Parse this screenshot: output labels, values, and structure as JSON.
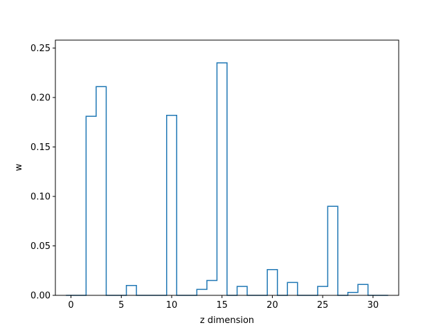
{
  "chart_data": {
    "type": "line",
    "style": "step-histogram",
    "title": "",
    "xlabel": "z dimension",
    "ylabel": "w",
    "xlim": [
      -1.55,
      32.55
    ],
    "ylim": [
      0,
      0.258
    ],
    "xticks": [
      0,
      5,
      10,
      15,
      20,
      25,
      30
    ],
    "xtick_labels": [
      "0",
      "5",
      "10",
      "15",
      "20",
      "25",
      "30"
    ],
    "yticks": [
      0,
      0.05,
      0.1,
      0.15,
      0.2,
      0.25
    ],
    "ytick_labels": [
      "0.00",
      "0.05",
      "0.10",
      "0.15",
      "0.20",
      "0.25"
    ],
    "grid": false,
    "legend": "none",
    "line_color": "#1f77b4",
    "series": [
      {
        "x": [
          0,
          1,
          2,
          3,
          4,
          5,
          6,
          7,
          8,
          9,
          10,
          11,
          12,
          13,
          14,
          15,
          16,
          17,
          18,
          19,
          20,
          21,
          22,
          23,
          24,
          25,
          26,
          27,
          28,
          29,
          30,
          31
        ],
        "values": [
          0,
          0,
          0.181,
          0.211,
          0,
          0,
          0.01,
          0,
          0,
          0,
          0.182,
          0,
          0,
          0.006,
          0.015,
          0.235,
          0,
          0.009,
          0,
          0,
          0.026,
          0,
          0.013,
          0,
          0,
          0.009,
          0.09,
          0,
          0.003,
          0.011,
          0,
          0
        ]
      }
    ]
  }
}
